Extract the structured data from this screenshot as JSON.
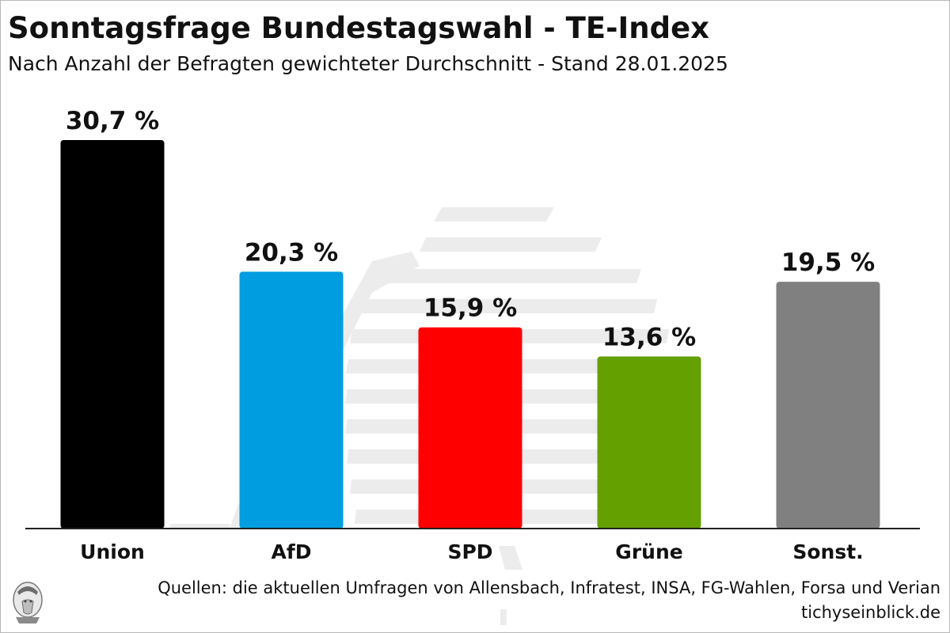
{
  "title": "Sonntagsfrage Bundestagswahl - TE-Index",
  "subtitle": "Nach Anzahl der Befragten gewichteter Durchschnitt - Stand 28.01.2025",
  "source": "Quellen: die aktuellen Umfragen von Allensbach, Infratest, INSA, FG-Wahlen, Forsa und Verian",
  "website": "tichyseinblick.de",
  "chart_data": {
    "type": "bar",
    "title": "Sonntagsfrage Bundestagswahl - TE-Index",
    "subtitle": "Nach Anzahl der Befragten gewichteter Durchschnitt - Stand 28.01.2025",
    "categories": [
      "Union",
      "AfD",
      "SPD",
      "Grüne",
      "Sonst."
    ],
    "values": [
      30.7,
      20.3,
      15.9,
      13.6,
      19.5
    ],
    "value_labels": [
      "30,7 %",
      "20,3 %",
      "15,9 %",
      "13,6 %",
      "19,5 %"
    ],
    "colors": [
      "#000000",
      "#009ee0",
      "#ff0000",
      "#64a000",
      "#808080"
    ],
    "unit": "%",
    "ylim": [
      0,
      30.7
    ],
    "grid": false,
    "legend": "none"
  }
}
